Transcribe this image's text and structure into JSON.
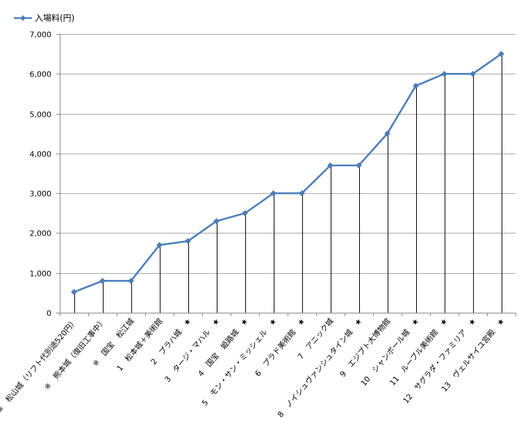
{
  "chart_data": {
    "type": "line",
    "title": "",
    "xlabel": "",
    "ylabel": "",
    "ylim": [
      0,
      7000
    ],
    "yticks": [
      0,
      1000,
      2000,
      3000,
      4000,
      5000,
      6000,
      7000
    ],
    "ytick_labels": [
      "0",
      "1,000",
      "2,000",
      "3,000",
      "4,000",
      "5,000",
      "6,000",
      "7,000"
    ],
    "grid": "horizontal",
    "drop_lines": true,
    "legend_position": "top-left",
    "colors": {
      "series": "#4a7ebb",
      "grid": "#a6a6a6",
      "axis": "#868686",
      "drop_line": "#000000"
    },
    "categories": [
      "※　松山城（リフト代別途520円）",
      "※　熊本城（復旧工事中）",
      "※　国宝　松江城",
      "1　松本城＋美術館",
      "2　プラハ城　★",
      "3　タージ・マハル　★",
      "4　国宝　姫路城　★",
      "5　モン・サン・ミッシェル　★",
      "6　プラド美術館　★",
      "7　アニック城",
      "8　ノイシュヴァンシュタイン城　★",
      "9　エジプト大博物館",
      "10　シャンボール城　★",
      "11　ルーブル美術館　★",
      "12　サグラダ・ファミリア　★",
      "13　ヴェルサイユ宮殿　★"
    ],
    "series": [
      {
        "name": "入場料(円)",
        "values": [
          520,
          800,
          800,
          1700,
          1800,
          2300,
          2500,
          3000,
          3000,
          3700,
          3700,
          4500,
          5700,
          6000,
          6000,
          6500
        ]
      }
    ]
  }
}
